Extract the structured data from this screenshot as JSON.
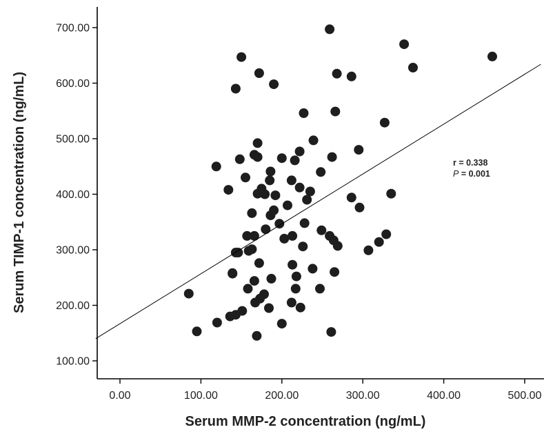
{
  "chart_data": {
    "type": "scatter",
    "xlabel": "Serum MMP-2 concentration (ng/mL)",
    "ylabel": "Serum TIMP-1 concentration (ng/mL)",
    "xlim": [
      -30,
      520
    ],
    "ylim": [
      60,
      735
    ],
    "x_ticks": [
      0,
      100,
      200,
      300,
      400,
      500
    ],
    "x_tick_labels": [
      "0.00",
      "100.00",
      "200.00",
      "300.00",
      "400.00",
      "500.00"
    ],
    "y_ticks": [
      100,
      200,
      300,
      400,
      500,
      600,
      700
    ],
    "y_tick_labels": [
      "100.00",
      "200.00",
      "300.00",
      "400.00",
      "500.00",
      "600.00",
      "700.00"
    ],
    "grid": false,
    "legend": "none",
    "colors": {
      "point": "#1e1e1e",
      "line": "#000000",
      "axis": "#000000"
    },
    "annotation": {
      "r_label": "r = 0.338",
      "p_symbol": "P",
      "p_value": " = 0.001"
    },
    "fit_line": {
      "x": [
        -30,
        520
      ],
      "y": [
        140,
        634
      ]
    },
    "x": [
      259,
      351,
      460,
      150,
      268,
      362,
      172,
      286,
      143,
      190,
      227,
      266,
      327,
      170,
      239,
      295,
      200,
      222,
      148,
      170,
      262,
      119,
      216,
      248,
      186,
      166,
      155,
      212,
      175,
      222,
      134,
      185,
      235,
      179,
      231,
      192,
      170,
      335,
      286,
      296,
      186,
      207,
      163,
      190,
      228,
      197,
      180,
      249,
      166,
      157,
      213,
      226,
      259,
      264,
      203,
      163,
      269,
      320,
      307,
      329,
      139,
      172,
      213,
      143,
      159,
      238,
      265,
      139,
      146,
      187,
      218,
      166,
      247,
      158,
      217,
      178,
      212,
      184,
      223,
      173,
      85,
      167,
      151,
      136,
      143,
      200,
      120,
      169,
      95,
      261
    ],
    "y": [
      697,
      670,
      648,
      647,
      617,
      628,
      618,
      612,
      590,
      598,
      546,
      549,
      529,
      492,
      497,
      480,
      465,
      477,
      463,
      467,
      467,
      450,
      461,
      440,
      441,
      471,
      430,
      425,
      410,
      412,
      408,
      425,
      405,
      400,
      390,
      398,
      401,
      401,
      394,
      376,
      362,
      380,
      366,
      371,
      348,
      347,
      337,
      335,
      325,
      325,
      325,
      306,
      325,
      317,
      320,
      301,
      307,
      314,
      299,
      328,
      257,
      276,
      273,
      295,
      298,
      266,
      260,
      258,
      295,
      248,
      252,
      244,
      230,
      230,
      230,
      220,
      205,
      195,
      196,
      212,
      221,
      205,
      190,
      180,
      183,
      167,
      169,
      145,
      153,
      152
    ]
  }
}
